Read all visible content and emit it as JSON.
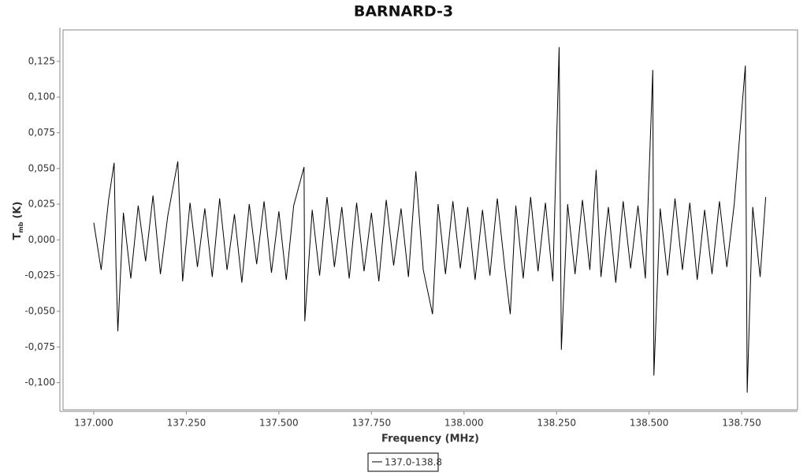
{
  "chart_data": {
    "type": "line",
    "title": "BARNARD-3",
    "x_label": "Frequency (MHz)",
    "y_label": "T",
    "y_label_sub": "mb",
    "y_label_unit": "(K)",
    "xlim": [
      136.917,
      138.901
    ],
    "ylim": [
      -0.119,
      0.147
    ],
    "xticks": [
      {
        "value": 137,
        "label": "137.000"
      },
      {
        "value": 137.25,
        "label": "137.250"
      },
      {
        "value": 137.5,
        "label": "137.500"
      },
      {
        "value": 137.75,
        "label": "137.750"
      },
      {
        "value": 138,
        "label": "138.000"
      },
      {
        "value": 138.25,
        "label": "138.250"
      },
      {
        "value": 138.5,
        "label": "138.500"
      },
      {
        "value": 138.75,
        "label": "138.750"
      }
    ],
    "yticks": [
      {
        "value": -0.1,
        "label": "-0,100"
      },
      {
        "value": -0.075,
        "label": "-0,075"
      },
      {
        "value": -0.05,
        "label": "-0,050"
      },
      {
        "value": -0.025,
        "label": "-0,025"
      },
      {
        "value": 0,
        "label": "0,000"
      },
      {
        "value": 0.025,
        "label": "0,025"
      },
      {
        "value": 0.05,
        "label": "0,050"
      },
      {
        "value": 0.075,
        "label": "0,075"
      },
      {
        "value": 0.1,
        "label": "0,100"
      },
      {
        "value": 0.125,
        "label": "0,125"
      }
    ],
    "grid": false,
    "legend": "bottom",
    "series": [
      {
        "name": "137.0-138.8",
        "color": "#000000",
        "x": [
          137.0,
          137.02,
          137.04,
          137.055,
          137.06,
          137.065,
          137.08,
          137.1,
          137.12,
          137.14,
          137.16,
          137.18,
          137.2,
          137.227,
          137.24,
          137.26,
          137.28,
          137.3,
          137.32,
          137.34,
          137.36,
          137.38,
          137.4,
          137.42,
          137.44,
          137.46,
          137.48,
          137.5,
          137.52,
          137.54,
          137.568,
          137.57,
          137.59,
          137.61,
          137.63,
          137.65,
          137.67,
          137.69,
          137.71,
          137.73,
          137.75,
          137.77,
          137.79,
          137.81,
          137.83,
          137.85,
          137.87,
          137.89,
          137.915,
          137.93,
          137.95,
          137.97,
          137.99,
          138.01,
          138.03,
          138.05,
          138.07,
          138.09,
          138.11,
          138.125,
          138.14,
          138.16,
          138.18,
          138.2,
          138.22,
          138.24,
          138.257,
          138.263,
          138.28,
          138.3,
          138.32,
          138.34,
          138.357,
          138.37,
          138.39,
          138.41,
          138.43,
          138.45,
          138.47,
          138.49,
          138.51,
          138.513,
          138.53,
          138.55,
          138.57,
          138.59,
          138.61,
          138.63,
          138.65,
          138.67,
          138.69,
          138.71,
          138.73,
          138.76,
          138.765,
          138.78,
          138.8,
          138.815
        ],
        "values": [
          0.012,
          -0.021,
          0.028,
          0.054,
          -0.018,
          -0.064,
          0.019,
          -0.027,
          0.024,
          -0.015,
          0.031,
          -0.024,
          0.017,
          0.055,
          -0.029,
          0.026,
          -0.019,
          0.022,
          -0.026,
          0.029,
          -0.021,
          0.018,
          -0.03,
          0.025,
          -0.017,
          0.027,
          -0.023,
          0.02,
          -0.028,
          0.024,
          0.051,
          -0.057,
          0.021,
          -0.025,
          0.03,
          -0.019,
          0.023,
          -0.027,
          0.026,
          -0.022,
          0.019,
          -0.029,
          0.028,
          -0.018,
          0.022,
          -0.026,
          0.048,
          -0.021,
          -0.052,
          0.025,
          -0.024,
          0.027,
          -0.02,
          0.023,
          -0.028,
          0.021,
          -0.025,
          0.029,
          -0.019,
          -0.052,
          0.024,
          -0.027,
          0.03,
          -0.022,
          0.026,
          -0.029,
          0.135,
          -0.077,
          0.025,
          -0.024,
          0.028,
          -0.021,
          0.049,
          -0.026,
          0.023,
          -0.03,
          0.027,
          -0.02,
          0.024,
          -0.027,
          0.119,
          -0.095,
          0.022,
          -0.025,
          0.029,
          -0.021,
          0.026,
          -0.028,
          0.021,
          -0.024,
          0.027,
          -0.019,
          0.025,
          0.122,
          -0.107,
          0.023,
          -0.026,
          0.03
        ]
      }
    ]
  }
}
